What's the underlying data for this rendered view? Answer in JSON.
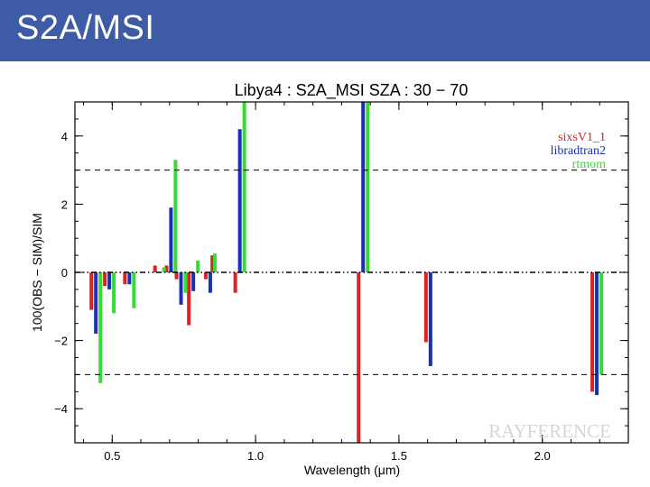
{
  "header": {
    "title": "S2A/MSI"
  },
  "chart_data": {
    "type": "bar",
    "title": "Libya4 : S2A_MSI SZA : 30 − 70",
    "xlabel": "Wavelength (μm)",
    "ylabel": "100(OBS − SIM)/SIM",
    "xlim": [
      0.37,
      2.3
    ],
    "ylim": [
      -5,
      5
    ],
    "xticks": [
      0.5,
      1.0,
      1.5,
      2.0
    ],
    "xtick_labels": [
      "0.5",
      "1.0",
      "1.5",
      "2.0"
    ],
    "yticks": [
      -4,
      -2,
      0,
      2,
      4
    ],
    "ytick_labels": [
      "−4",
      "−2",
      "0",
      "2",
      "4"
    ],
    "reference_lines": [
      3,
      -3
    ],
    "legend_position": "top-right",
    "watermark": "RAYFERENCE",
    "band_centers": [
      0.443,
      0.49,
      0.56,
      0.665,
      0.705,
      0.74,
      0.783,
      0.842,
      0.865,
      0.945,
      1.375,
      1.61,
      2.19
    ],
    "series": [
      {
        "name": "sixsV1_1",
        "color": "#dd2222",
        "values": [
          -1.1,
          -0.4,
          -0.35,
          0.2,
          0.2,
          -0.2,
          -1.55,
          -0.2,
          0.5,
          -0.6,
          -5.0,
          -2.05,
          -3.5
        ]
      },
      {
        "name": "libradtran2",
        "color": "#1a2fb5",
        "values": [
          -1.8,
          -0.5,
          -0.35,
          0.0,
          1.9,
          -0.95,
          -0.55,
          -0.6,
          0.0,
          4.2,
          5.0,
          -2.75,
          -3.6
        ]
      },
      {
        "name": "rtmom",
        "color": "#33dd33",
        "values": [
          -3.25,
          -1.2,
          -1.05,
          0.15,
          3.3,
          -0.6,
          0.35,
          0.55,
          0.0,
          5.0,
          5.0,
          0.0,
          -3.0
        ]
      }
    ]
  }
}
